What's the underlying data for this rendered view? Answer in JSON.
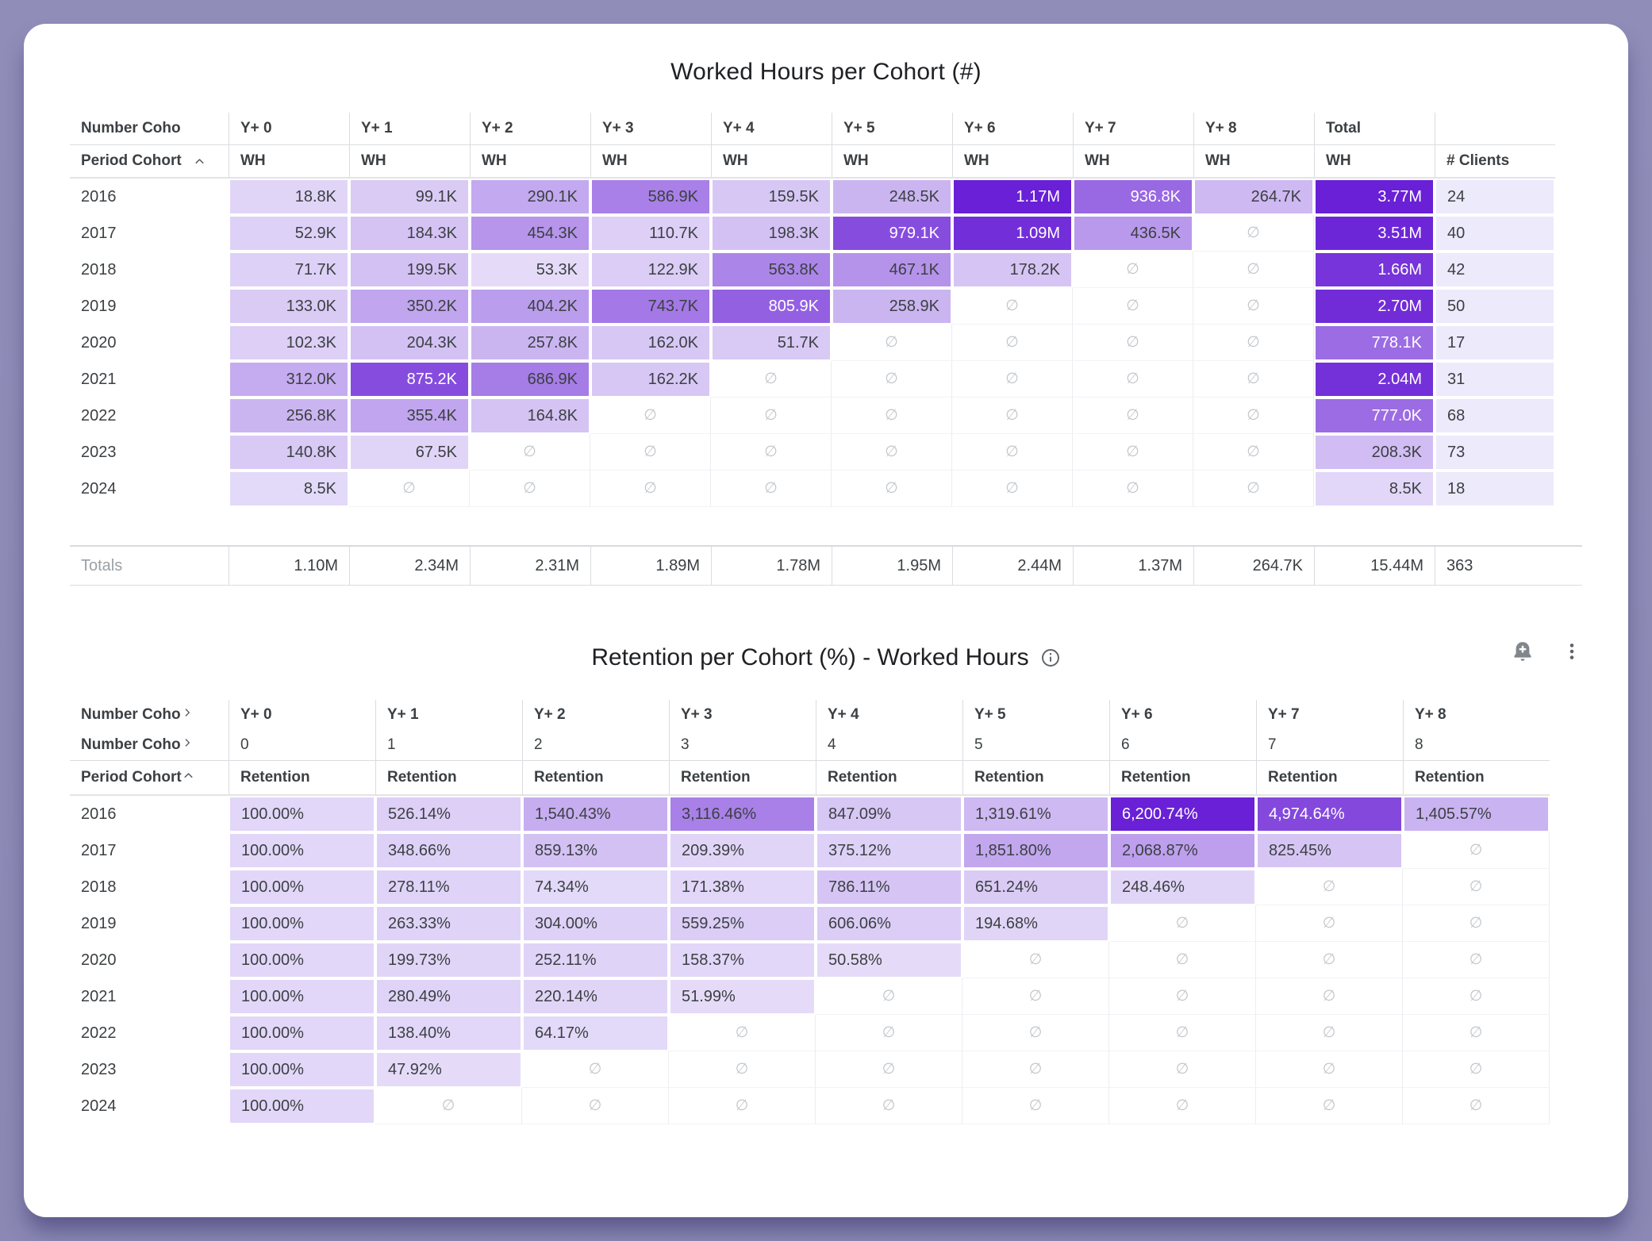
{
  "theme": {
    "page_bg": "#8F8CB8",
    "card_bg": "#FFFFFF",
    "heat_light_rgb": [
      238,
      233,
      251
    ],
    "heat_dark_rgb": [
      105,
      32,
      214
    ],
    "heat_dark_hex": "#6920D6",
    "clients_col_bg": "#ECEAFB",
    "header_text": "#3c4043",
    "muted_text": "#9aa0a6",
    "empty_symbol_color": "#c1c5ca",
    "white_text_threshold": 0.6
  },
  "icons": {
    "sort_asc": "chevron-up",
    "expand": "chevron-right",
    "info": "info-circle",
    "alert": "bell-plus",
    "menu": "kebab-vertical"
  },
  "empty_symbol": "∅",
  "table1": {
    "title": "Worked Hours per Cohort (#)",
    "corner_row1": "Number Coho",
    "corner_row2": "Period Cohort",
    "col_groups": [
      "Y+ 0",
      "Y+ 1",
      "Y+ 2",
      "Y+ 3",
      "Y+ 4",
      "Y+ 5",
      "Y+ 6",
      "Y+ 7",
      "Y+ 8",
      "Total",
      ""
    ],
    "sub_headers": [
      "WH",
      "WH",
      "WH",
      "WH",
      "WH",
      "WH",
      "WH",
      "WH",
      "WH",
      "WH",
      "# Clients"
    ],
    "rows": [
      {
        "label": "2016",
        "cells": [
          {
            "v": "18.8K",
            "t": 0.1
          },
          {
            "v": "99.1K",
            "t": 0.15
          },
          {
            "v": "290.1K",
            "t": 0.32
          },
          {
            "v": "586.9K",
            "t": 0.52
          },
          {
            "v": "159.5K",
            "t": 0.17
          },
          {
            "v": "248.5K",
            "t": 0.26
          },
          {
            "v": "1.17M",
            "t": 1.0
          },
          {
            "v": "936.8K",
            "t": 0.64
          },
          {
            "v": "264.7K",
            "t": 0.24
          }
        ],
        "total": {
          "v": "3.77M",
          "t": 1.0
        },
        "clients": "24"
      },
      {
        "label": "2017",
        "cells": [
          {
            "v": "52.9K",
            "t": 0.12
          },
          {
            "v": "184.3K",
            "t": 0.19
          },
          {
            "v": "454.3K",
            "t": 0.42
          },
          {
            "v": "110.7K",
            "t": 0.13
          },
          {
            "v": "198.3K",
            "t": 0.2
          },
          {
            "v": "979.1K",
            "t": 0.78
          },
          {
            "v": "1.09M",
            "t": 0.93
          },
          {
            "v": "436.5K",
            "t": 0.4
          },
          null
        ],
        "total": {
          "v": "3.51M",
          "t": 0.97
        },
        "clients": "40"
      },
      {
        "label": "2018",
        "cells": [
          {
            "v": "71.7K",
            "t": 0.12
          },
          {
            "v": "199.5K",
            "t": 0.2
          },
          {
            "v": "53.3K",
            "t": 0.07
          },
          {
            "v": "122.9K",
            "t": 0.14
          },
          {
            "v": "563.8K",
            "t": 0.5
          },
          {
            "v": "467.1K",
            "t": 0.43
          },
          {
            "v": "178.2K",
            "t": 0.18
          },
          null,
          null
        ],
        "total": {
          "v": "1.66M",
          "t": 0.9
        },
        "clients": "42"
      },
      {
        "label": "2019",
        "cells": [
          {
            "v": "133.0K",
            "t": 0.15
          },
          {
            "v": "350.2K",
            "t": 0.34
          },
          {
            "v": "404.2K",
            "t": 0.38
          },
          {
            "v": "743.7K",
            "t": 0.56
          },
          {
            "v": "805.9K",
            "t": 0.68
          },
          {
            "v": "258.9K",
            "t": 0.26
          },
          null,
          null,
          null
        ],
        "total": {
          "v": "2.70M",
          "t": 0.94
        },
        "clients": "50"
      },
      {
        "label": "2020",
        "cells": [
          {
            "v": "102.3K",
            "t": 0.13
          },
          {
            "v": "204.3K",
            "t": 0.2
          },
          {
            "v": "257.8K",
            "t": 0.26
          },
          {
            "v": "162.0K",
            "t": 0.17
          },
          {
            "v": "51.7K",
            "t": 0.16
          },
          null,
          null,
          null,
          null
        ],
        "total": {
          "v": "778.1K",
          "t": 0.62
        },
        "clients": "17"
      },
      {
        "label": "2021",
        "cells": [
          {
            "v": "312.0K",
            "t": 0.31
          },
          {
            "v": "875.2K",
            "t": 0.78
          },
          {
            "v": "686.9K",
            "t": 0.54
          },
          {
            "v": "162.2K",
            "t": 0.17
          },
          null,
          null,
          null,
          null,
          null
        ],
        "total": {
          "v": "2.04M",
          "t": 0.92
        },
        "clients": "31"
      },
      {
        "label": "2022",
        "cells": [
          {
            "v": "256.8K",
            "t": 0.26
          },
          {
            "v": "355.4K",
            "t": 0.34
          },
          {
            "v": "164.8K",
            "t": 0.19
          },
          null,
          null,
          null,
          null,
          null,
          null
        ],
        "total": {
          "v": "777.0K",
          "t": 0.62
        },
        "clients": "68"
      },
      {
        "label": "2023",
        "cells": [
          {
            "v": "140.8K",
            "t": 0.16
          },
          {
            "v": "67.5K",
            "t": 0.1
          },
          null,
          null,
          null,
          null,
          null,
          null,
          null
        ],
        "total": {
          "v": "208.3K",
          "t": 0.22
        },
        "clients": "73"
      },
      {
        "label": "2024",
        "cells": [
          {
            "v": "8.5K",
            "t": 0.08
          },
          null,
          null,
          null,
          null,
          null,
          null,
          null,
          null
        ],
        "total": {
          "v": "8.5K",
          "t": 0.09
        },
        "clients": "18"
      }
    ],
    "totals": {
      "label": "Totals",
      "values": [
        "1.10M",
        "2.34M",
        "2.31M",
        "1.89M",
        "1.78M",
        "1.95M",
        "2.44M",
        "1.37M",
        "264.7K"
      ],
      "total": "15.44M",
      "clients": "363"
    }
  },
  "table2": {
    "title": "Retention per Cohort (%) - Worked Hours",
    "corner_row1": "Number Coho",
    "corner_row2": "Number Coho",
    "corner_row3": "Period Cohort",
    "col_groups": [
      "Y+ 0",
      "Y+ 1",
      "Y+ 2",
      "Y+ 3",
      "Y+ 4",
      "Y+ 5",
      "Y+ 6",
      "Y+ 7",
      "Y+ 8"
    ],
    "col_numbers": [
      "0",
      "1",
      "2",
      "3",
      "4",
      "5",
      "6",
      "7",
      "8"
    ],
    "sub_headers": [
      "Retention",
      "Retention",
      "Retention",
      "Retention",
      "Retention",
      "Retention",
      "Retention",
      "Retention",
      "Retention"
    ],
    "rows": [
      {
        "label": "2016",
        "cells": [
          {
            "v": "100.00%",
            "t": 0.09
          },
          {
            "v": "526.14%",
            "t": 0.13
          },
          {
            "v": "1,540.43%",
            "t": 0.3
          },
          {
            "v": "3,116.46%",
            "t": 0.52
          },
          {
            "v": "847.09%",
            "t": 0.17
          },
          {
            "v": "1,319.61%",
            "t": 0.24
          },
          {
            "v": "6,200.74%",
            "t": 1.0
          },
          {
            "v": "4,974.64%",
            "t": 0.8
          },
          {
            "v": "1,405.57%",
            "t": 0.27
          }
        ]
      },
      {
        "label": "2017",
        "cells": [
          {
            "v": "100.00%",
            "t": 0.09
          },
          {
            "v": "348.66%",
            "t": 0.12
          },
          {
            "v": "859.13%",
            "t": 0.2
          },
          {
            "v": "209.39%",
            "t": 0.1
          },
          {
            "v": "375.12%",
            "t": 0.12
          },
          {
            "v": "1,851.80%",
            "t": 0.33
          },
          {
            "v": "2,068.87%",
            "t": 0.37
          },
          {
            "v": "825.45%",
            "t": 0.18
          },
          null
        ]
      },
      {
        "label": "2018",
        "cells": [
          {
            "v": "100.00%",
            "t": 0.09
          },
          {
            "v": "278.11%",
            "t": 0.11
          },
          {
            "v": "74.34%",
            "t": 0.08
          },
          {
            "v": "171.38%",
            "t": 0.09
          },
          {
            "v": "786.11%",
            "t": 0.18
          },
          {
            "v": "651.24%",
            "t": 0.15
          },
          {
            "v": "248.46%",
            "t": 0.1
          },
          null,
          null
        ]
      },
      {
        "label": "2019",
        "cells": [
          {
            "v": "100.00%",
            "t": 0.09
          },
          {
            "v": "263.33%",
            "t": 0.11
          },
          {
            "v": "304.00%",
            "t": 0.12
          },
          {
            "v": "559.25%",
            "t": 0.14
          },
          {
            "v": "606.06%",
            "t": 0.14
          },
          {
            "v": "194.68%",
            "t": 0.1
          },
          null,
          null,
          null
        ]
      },
      {
        "label": "2020",
        "cells": [
          {
            "v": "100.00%",
            "t": 0.09
          },
          {
            "v": "199.73%",
            "t": 0.1
          },
          {
            "v": "252.11%",
            "t": 0.11
          },
          {
            "v": "158.37%",
            "t": 0.09
          },
          {
            "v": "50.58%",
            "t": 0.07
          },
          null,
          null,
          null,
          null
        ]
      },
      {
        "label": "2021",
        "cells": [
          {
            "v": "100.00%",
            "t": 0.09
          },
          {
            "v": "280.49%",
            "t": 0.11
          },
          {
            "v": "220.14%",
            "t": 0.1
          },
          {
            "v": "51.99%",
            "t": 0.07
          },
          null,
          null,
          null,
          null,
          null
        ]
      },
      {
        "label": "2022",
        "cells": [
          {
            "v": "100.00%",
            "t": 0.09
          },
          {
            "v": "138.40%",
            "t": 0.09
          },
          {
            "v": "64.17%",
            "t": 0.08
          },
          null,
          null,
          null,
          null,
          null,
          null
        ]
      },
      {
        "label": "2023",
        "cells": [
          {
            "v": "100.00%",
            "t": 0.09
          },
          {
            "v": "47.92%",
            "t": 0.07
          },
          null,
          null,
          null,
          null,
          null,
          null,
          null
        ]
      },
      {
        "label": "2024",
        "cells": [
          {
            "v": "100.00%",
            "t": 0.09
          },
          null,
          null,
          null,
          null,
          null,
          null,
          null,
          null
        ]
      }
    ]
  }
}
